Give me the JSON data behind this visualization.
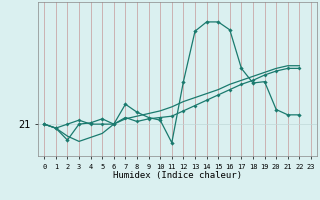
{
  "xlabel": "Humidex (Indice chaleur)",
  "bg_color": "#daf0f0",
  "line_color": "#1a7a6e",
  "grid_color_v": "#c9a8a8",
  "grid_color_h": "#c0d8d8",
  "x": [
    0,
    1,
    2,
    3,
    4,
    5,
    6,
    7,
    8,
    9,
    10,
    11,
    12,
    13,
    14,
    15,
    16,
    17,
    18,
    19,
    20,
    21,
    22,
    23
  ],
  "line1": [
    21.0,
    20.85,
    20.4,
    21.0,
    21.05,
    21.2,
    21.0,
    21.75,
    21.45,
    21.25,
    21.15,
    20.3,
    22.6,
    24.5,
    24.85,
    24.85,
    24.55,
    23.1,
    22.55,
    22.6,
    21.55,
    21.35,
    21.35,
    null
  ],
  "line2": [
    21.0,
    20.85,
    21.0,
    21.15,
    21.0,
    21.0,
    21.0,
    21.25,
    21.1,
    21.2,
    21.25,
    21.3,
    21.5,
    21.7,
    21.9,
    22.1,
    22.3,
    22.5,
    22.65,
    22.85,
    23.0,
    23.1,
    23.1,
    null
  ],
  "line3": [
    21.0,
    20.85,
    20.55,
    20.35,
    20.5,
    20.65,
    21.0,
    21.2,
    21.3,
    21.4,
    21.5,
    21.65,
    21.85,
    22.0,
    22.15,
    22.3,
    22.5,
    22.65,
    22.8,
    22.95,
    23.1,
    23.2,
    23.2,
    null
  ],
  "ytick_val": 21.0,
  "ytick_label": "21",
  "ylim": [
    19.8,
    25.6
  ],
  "xlim": [
    -0.5,
    23.5
  ]
}
